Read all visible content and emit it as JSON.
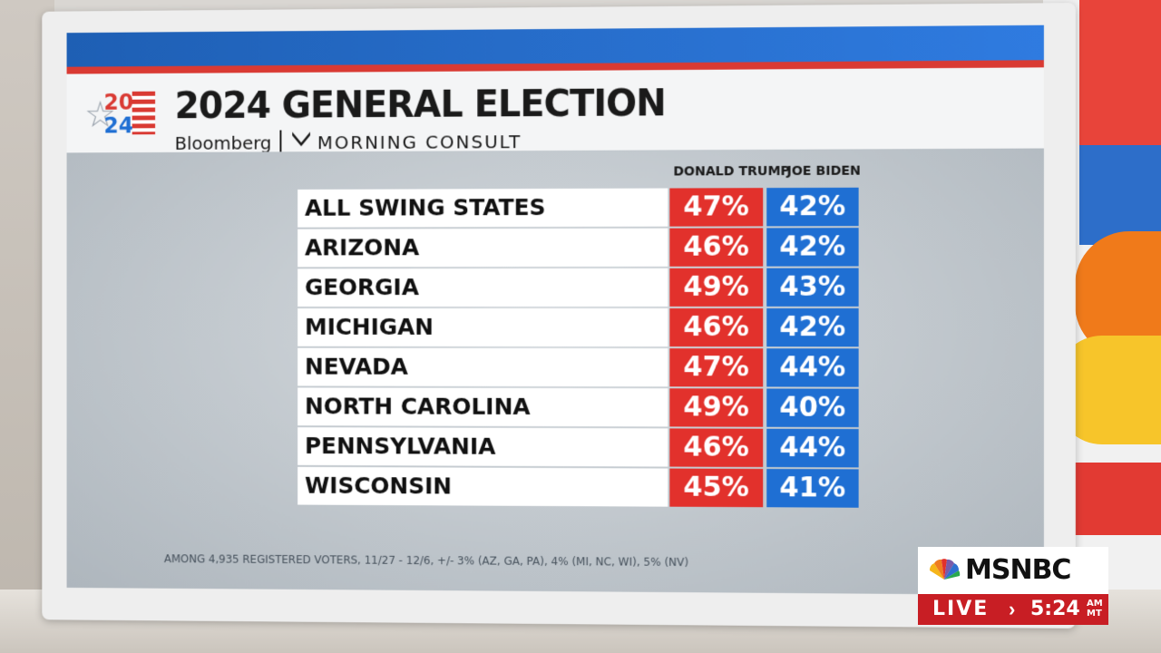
{
  "graphic": {
    "logo_top": "20",
    "logo_bottom": "24",
    "title": "2024 GENERAL ELECTION",
    "partner_1": "Bloomberg",
    "partner_2": "MORNING CONSULT",
    "column_1": "DONALD TRUMP",
    "column_2": "JOE BIDEN",
    "footnote": "AMONG 4,935 REGISTERED VOTERS, 11/27 - 12/6, +/- 3% (AZ, GA, PA), 4% (MI, NC, WI), 5% (NV)",
    "colors": {
      "trump": "#e2312c",
      "biden": "#1f6fd3",
      "accent_red": "#d93a33",
      "accent_blue": "#2f7be0"
    }
  },
  "chart_data": {
    "type": "table",
    "columns": [
      "DONALD TRUMP",
      "JOE BIDEN"
    ],
    "rows": [
      {
        "state": "ALL SWING STATES",
        "trump": "47%",
        "biden": "42%"
      },
      {
        "state": "ARIZONA",
        "trump": "46%",
        "biden": "42%"
      },
      {
        "state": "GEORGIA",
        "trump": "49%",
        "biden": "43%"
      },
      {
        "state": "MICHIGAN",
        "trump": "46%",
        "biden": "42%"
      },
      {
        "state": "NEVADA",
        "trump": "47%",
        "biden": "44%"
      },
      {
        "state": "NORTH CAROLINA",
        "trump": "49%",
        "biden": "40%"
      },
      {
        "state": "PENNSYLVANIA",
        "trump": "46%",
        "biden": "44%"
      },
      {
        "state": "WISCONSIN",
        "trump": "45%",
        "biden": "41%"
      }
    ]
  },
  "bug": {
    "network": "MSNBC",
    "live": "LIVE",
    "chevron": "›",
    "time": "5:24",
    "ampm_1": "AM",
    "ampm_2": "MT"
  }
}
